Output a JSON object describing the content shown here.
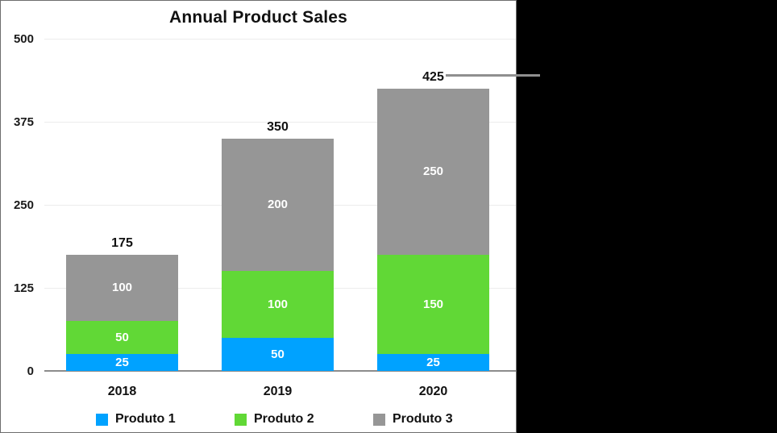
{
  "chart_data": {
    "type": "bar",
    "stacked": true,
    "title": "Annual Product Sales",
    "categories": [
      "2018",
      "2019",
      "2020"
    ],
    "series": [
      {
        "name": "Produto 1",
        "color": "#00a2ff",
        "values": [
          25,
          50,
          25
        ]
      },
      {
        "name": "Produto 2",
        "color": "#61d836",
        "values": [
          50,
          100,
          150
        ]
      },
      {
        "name": "Produto 3",
        "color": "#969696",
        "values": [
          100,
          200,
          250
        ]
      }
    ],
    "totals": [
      "175",
      "350",
      "425"
    ],
    "y_ticks": [
      0,
      125,
      250,
      375,
      500
    ],
    "ylim": [
      0,
      500
    ],
    "grid": true,
    "legend_position": "bottom",
    "annotation": {
      "type": "leader-line",
      "attached_label": "425",
      "line_color": "#8f8f8f"
    }
  },
  "colors": {
    "panel_background": "#ffffff",
    "outer_background": "#000000",
    "gridline": "#ececec",
    "axis_line": "#8c8c8c",
    "text": "#111111",
    "segment_label_text": "#ffffff"
  }
}
